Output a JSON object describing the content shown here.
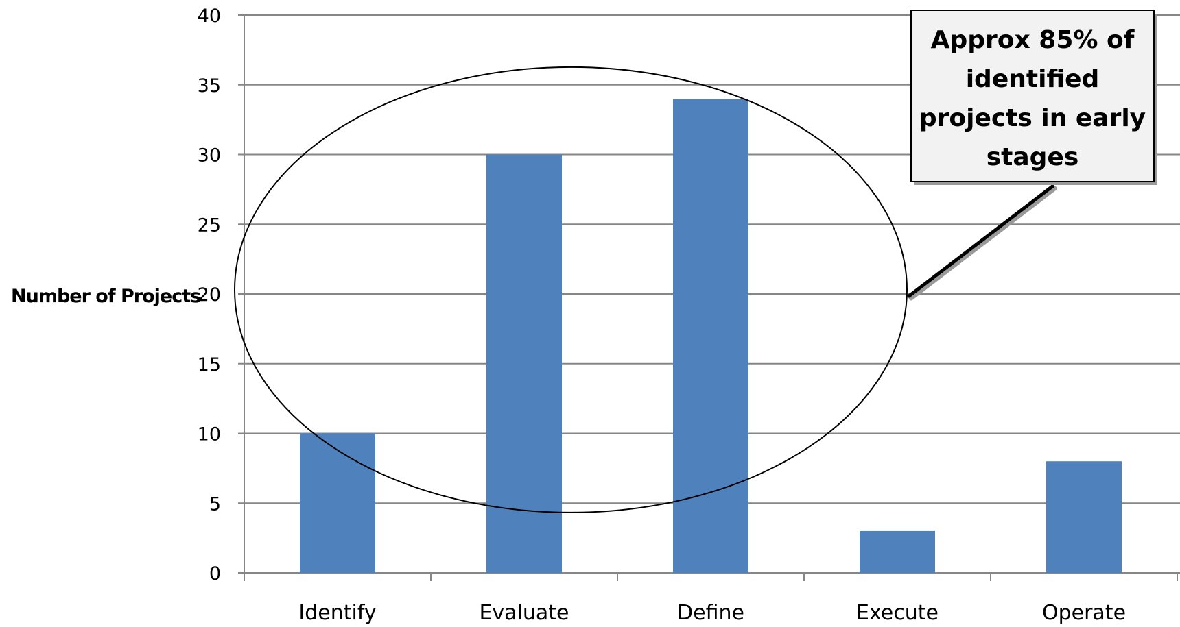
{
  "chart_data": {
    "type": "bar",
    "categories": [
      "Identify",
      "Evaluate",
      "Define",
      "Execute",
      "Operate"
    ],
    "values": [
      10,
      30,
      34,
      3,
      8
    ],
    "title": "",
    "xlabel": "",
    "ylabel": "Number of Projects",
    "ylim": [
      0,
      40
    ],
    "yticks": [
      0,
      5,
      10,
      15,
      20,
      25,
      30,
      35,
      40
    ],
    "grid": true,
    "bar_color": "#4f81bd",
    "annotation": {
      "lines": [
        "Approx 85% of",
        "identified",
        "projects in early",
        "stages"
      ],
      "encloses": [
        "Identify",
        "Evaluate",
        "Define"
      ]
    }
  }
}
